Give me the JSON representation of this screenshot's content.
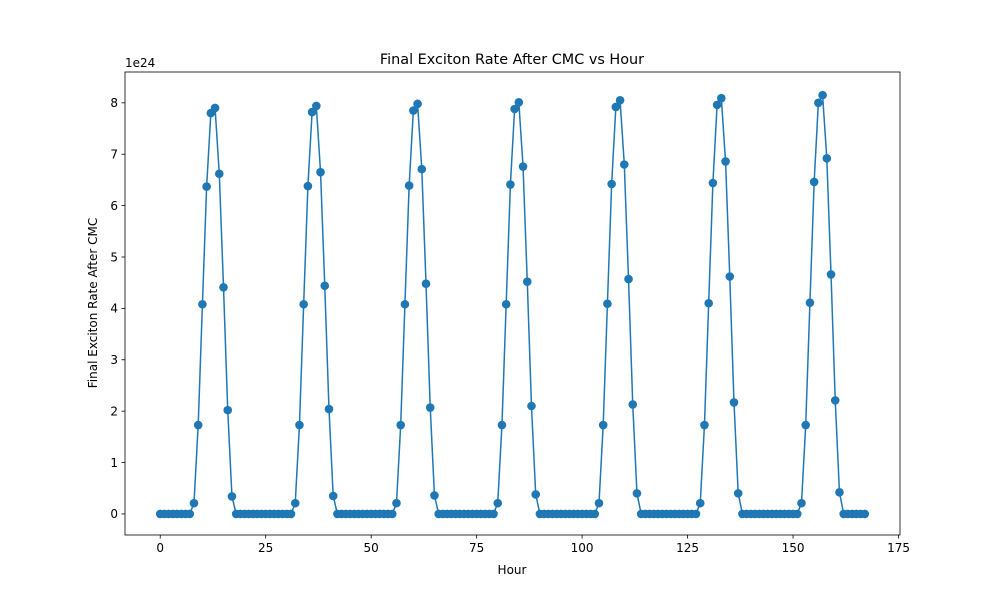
{
  "chart_data": {
    "type": "line",
    "title": "Final Exciton Rate After CMC vs Hour",
    "xlabel": "Hour",
    "ylabel": "Final Exciton Rate After CMC",
    "y_offset_label": "1e24",
    "xlim": [
      -8.35,
      175.35
    ],
    "ylim": [
      -0.41,
      8.6
    ],
    "x_ticks": [
      0,
      25,
      50,
      75,
      100,
      125,
      150,
      175
    ],
    "y_ticks": [
      0,
      1,
      2,
      3,
      4,
      5,
      6,
      7,
      8
    ],
    "grid": false,
    "marker": "circle",
    "series_color": "#1f77b4",
    "series": [
      {
        "x": [
          0,
          1,
          2,
          3,
          4,
          5,
          6,
          7,
          8,
          9,
          10,
          11,
          12,
          13,
          14,
          15,
          16,
          17,
          18,
          19,
          20,
          21,
          22,
          23,
          24,
          25,
          26,
          27,
          28,
          29,
          30,
          31,
          32,
          33,
          34,
          35,
          36,
          37,
          38,
          39,
          40,
          41,
          42,
          43,
          44,
          45,
          46,
          47,
          48,
          49,
          50,
          51,
          52,
          53,
          54,
          55,
          56,
          57,
          58,
          59,
          60,
          61,
          62,
          63,
          64,
          65,
          66,
          67,
          68,
          69,
          70,
          71,
          72,
          73,
          74,
          75,
          76,
          77,
          78,
          79,
          80,
          81,
          82,
          83,
          84,
          85,
          86,
          87,
          88,
          89,
          90,
          91,
          92,
          93,
          94,
          95,
          96,
          97,
          98,
          99,
          100,
          101,
          102,
          103,
          104,
          105,
          106,
          107,
          108,
          109,
          110,
          111,
          112,
          113,
          114,
          115,
          116,
          117,
          118,
          119,
          120,
          121,
          122,
          123,
          124,
          125,
          126,
          127,
          128,
          129,
          130,
          131,
          132,
          133,
          134,
          135,
          136,
          137,
          138,
          139,
          140,
          141,
          142,
          143,
          144,
          145,
          146,
          147,
          148,
          149,
          150,
          151,
          152,
          153,
          154,
          155,
          156,
          157,
          158,
          159,
          160,
          161,
          162,
          163,
          164,
          165,
          166,
          167
        ],
        "y": [
          0,
          0,
          0,
          0,
          0,
          0,
          0,
          0,
          0.21,
          1.73,
          4.08,
          6.37,
          7.8,
          7.9,
          6.62,
          4.41,
          2.02,
          0.34,
          0,
          0,
          0,
          0,
          0,
          0,
          0,
          0,
          0,
          0,
          0,
          0,
          0,
          0,
          0.21,
          1.73,
          4.08,
          6.38,
          7.82,
          7.94,
          6.65,
          4.44,
          2.04,
          0.35,
          0,
          0,
          0,
          0,
          0,
          0,
          0,
          0,
          0,
          0,
          0,
          0,
          0,
          0,
          0.21,
          1.73,
          4.08,
          6.39,
          7.85,
          7.98,
          6.71,
          4.48,
          2.07,
          0.36,
          0,
          0,
          0,
          0,
          0,
          0,
          0,
          0,
          0,
          0,
          0,
          0,
          0,
          0,
          0.21,
          1.73,
          4.08,
          6.41,
          7.88,
          8.01,
          6.76,
          4.52,
          2.1,
          0.38,
          0,
          0,
          0,
          0,
          0,
          0,
          0,
          0,
          0,
          0,
          0,
          0,
          0,
          0,
          0.21,
          1.73,
          4.09,
          6.42,
          7.92,
          8.05,
          6.8,
          4.57,
          2.13,
          0.4,
          0,
          0,
          0,
          0,
          0,
          0,
          0,
          0,
          0,
          0,
          0,
          0,
          0,
          0,
          0.21,
          1.73,
          4.1,
          6.44,
          7.96,
          8.09,
          6.86,
          4.62,
          2.17,
          0.4,
          0,
          0,
          0,
          0,
          0,
          0,
          0,
          0,
          0,
          0,
          0,
          0,
          0,
          0,
          0.21,
          1.73,
          4.11,
          6.46,
          8,
          8.15,
          6.92,
          4.66,
          2.21,
          0.42,
          0,
          0,
          0,
          0,
          0,
          0
        ]
      }
    ]
  }
}
